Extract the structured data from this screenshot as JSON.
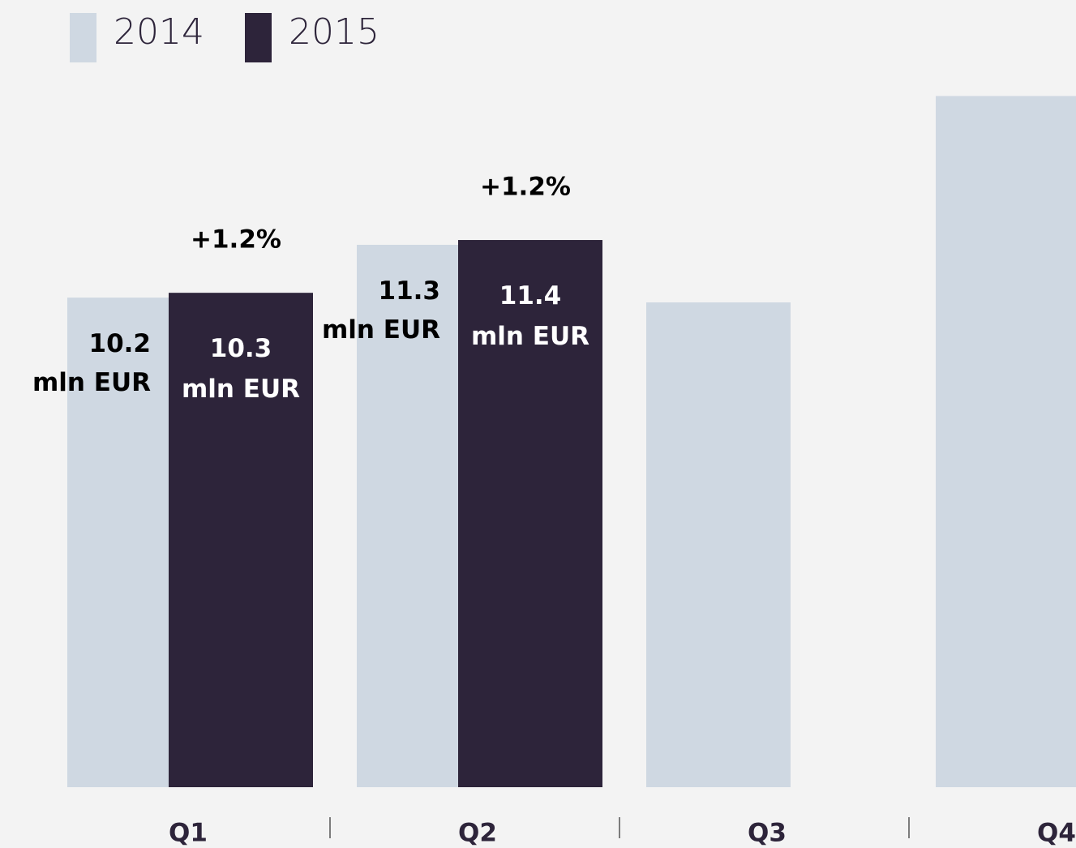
{
  "chart_data": {
    "type": "bar",
    "categories": [
      "Q1",
      "Q2",
      "Q3",
      "Q4"
    ],
    "series": [
      {
        "name": "2014",
        "color": "#cfd8e2",
        "values": [
          10.2,
          11.3,
          10.1,
          14.4
        ],
        "value_labels": [
          "10.2 mln EUR",
          "11.3 mln EUR",
          null,
          null
        ]
      },
      {
        "name": "2015",
        "color": "#2d243a",
        "values": [
          10.3,
          11.4,
          null,
          null
        ],
        "value_labels": [
          "10.3 mln EUR",
          "11.4 mln EUR",
          null,
          null
        ]
      }
    ],
    "change_labels": [
      "+1.2%",
      "+1.2%",
      null,
      null
    ],
    "ylim": [
      0,
      16.4
    ],
    "grid": false,
    "legend": "top-left"
  }
}
